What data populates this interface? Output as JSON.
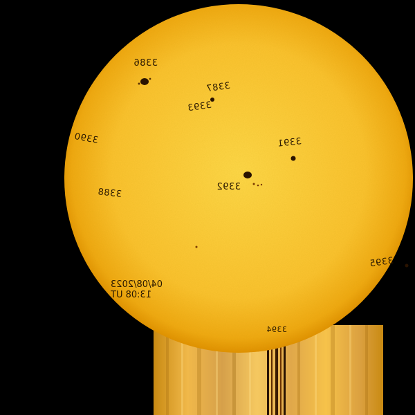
{
  "image": {
    "background_color": "#000000",
    "disk_color_center": "#ffd84a",
    "disk_color_edge": "#e79a00",
    "spot_color": "#2a1300"
  },
  "regions": [
    {
      "id": "r3386",
      "label": "3386"
    },
    {
      "id": "r3387",
      "label": "3387"
    },
    {
      "id": "r3393",
      "label": "3393"
    },
    {
      "id": "r3390",
      "label": "3390"
    },
    {
      "id": "r3391",
      "label": "3391"
    },
    {
      "id": "r3388",
      "label": "3388"
    },
    {
      "id": "r3392",
      "label": "3392"
    },
    {
      "id": "r3395",
      "label": "3395"
    },
    {
      "id": "r3394",
      "label": "3394"
    }
  ],
  "timestamp": {
    "date": "04/08/2023",
    "time": "13:08 UT"
  }
}
